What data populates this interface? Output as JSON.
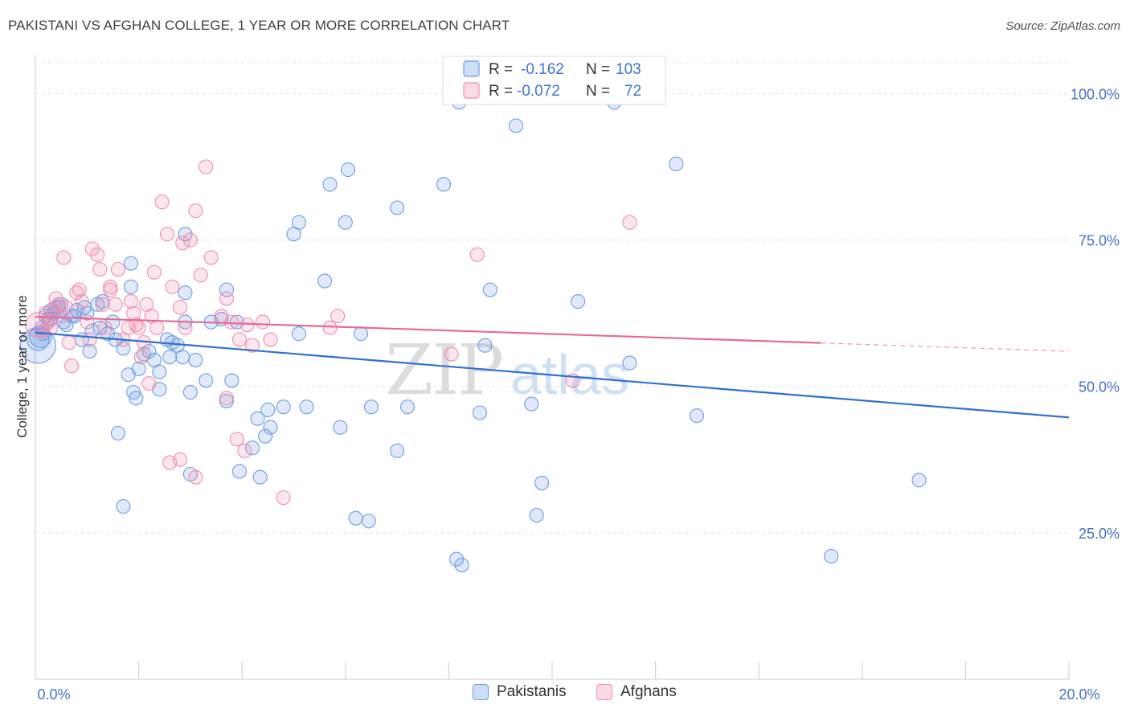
{
  "title": "PAKISTANI VS AFGHAN COLLEGE, 1 YEAR OR MORE CORRELATION CHART",
  "source": "Source: ZipAtlas.com",
  "watermark": {
    "zip": "ZIP",
    "atlas": "atlas"
  },
  "legend_top": [
    {
      "r_label": "R =",
      "r_value": "-0.162",
      "n_label": "N =",
      "n_value": "103",
      "color": "#6d9be3"
    },
    {
      "r_label": "R =",
      "r_value": "-0.072",
      "n_label": "N =",
      "n_value": "72",
      "color": "#f08caf"
    }
  ],
  "legend_bottom": [
    {
      "label": "Pakistanis",
      "color": "#6d9be3"
    },
    {
      "label": "Afghans",
      "color": "#f08caf"
    }
  ],
  "chart_data": {
    "type": "scatter",
    "title": "PAKISTANI VS AFGHAN COLLEGE, 1 YEAR OR MORE CORRELATION CHART",
    "xlabel": "",
    "ylabel": "College, 1 year or more",
    "xlim": [
      0,
      20
    ],
    "ylim": [
      0,
      105
    ],
    "x_ticks": [
      "0.0%",
      "20.0%"
    ],
    "y_ticks": [
      {
        "value": 25,
        "label": "25.0%"
      },
      {
        "value": 50,
        "label": "50.0%"
      },
      {
        "value": 75,
        "label": "75.0%"
      },
      {
        "value": 100,
        "label": "100.0%"
      }
    ],
    "grid": true,
    "legend_position": "top-center",
    "series": [
      {
        "name": "Pakistanis",
        "color": "#6d9be3",
        "line_color": "#2e6fd0",
        "trend": {
          "x": [
            0,
            20
          ],
          "y": [
            59.2,
            44.7
          ],
          "dashed_from": null
        },
        "points": [
          [
            0.05,
            57.0,
            2.6
          ],
          [
            0.1,
            58.5,
            1.6
          ],
          [
            0.12,
            60.0,
            1.0
          ],
          [
            0.2,
            62.0,
            1.0
          ],
          [
            0.25,
            61.5,
            1.0
          ],
          [
            0.3,
            63.0,
            1.0
          ],
          [
            0.35,
            62.5,
            1.0
          ],
          [
            0.4,
            63.5,
            1.0
          ],
          [
            0.5,
            64.0,
            1.0
          ],
          [
            0.55,
            61.0,
            1.0
          ],
          [
            0.6,
            60.5,
            1.0
          ],
          [
            0.7,
            62.0,
            1.0
          ],
          [
            0.8,
            63.0,
            1.0
          ],
          [
            0.9,
            58.0,
            1.0
          ],
          [
            1.0,
            62.5,
            1.0
          ],
          [
            1.05,
            56.0,
            1.0
          ],
          [
            1.1,
            59.5,
            1.0
          ],
          [
            1.2,
            64.0,
            1.0
          ],
          [
            1.3,
            64.5,
            1.0
          ],
          [
            1.4,
            59.0,
            1.0
          ],
          [
            1.5,
            61.0,
            1.0
          ],
          [
            1.55,
            58.0,
            1.0
          ],
          [
            1.7,
            56.5,
            1.0
          ],
          [
            1.8,
            52.0,
            1.0
          ],
          [
            1.9,
            49.0,
            1.0
          ],
          [
            2.0,
            53.0,
            1.0
          ],
          [
            2.1,
            55.5,
            1.0
          ],
          [
            2.2,
            56.0,
            1.0
          ],
          [
            2.3,
            54.5,
            1.0
          ],
          [
            2.4,
            52.5,
            1.0
          ],
          [
            2.55,
            58.0,
            1.0
          ],
          [
            2.6,
            55.0,
            1.0
          ],
          [
            2.75,
            57.0,
            1.0
          ],
          [
            2.85,
            55.0,
            1.0
          ],
          [
            2.9,
            61.0,
            1.0
          ],
          [
            3.0,
            49.0,
            1.0
          ],
          [
            3.1,
            54.5,
            1.0
          ],
          [
            3.3,
            51.0,
            1.0
          ],
          [
            3.4,
            61.0,
            1.0
          ],
          [
            1.85,
            67.0,
            1.0
          ],
          [
            3.7,
            66.5,
            1.0
          ],
          [
            2.9,
            66.0,
            1.0
          ],
          [
            1.85,
            71.0,
            1.0
          ],
          [
            2.9,
            76.0,
            1.0
          ],
          [
            1.95,
            48.0,
            1.0
          ],
          [
            2.4,
            49.5,
            1.0
          ],
          [
            1.6,
            42.0,
            1.0
          ],
          [
            1.7,
            29.5,
            1.0
          ],
          [
            3.0,
            35.0,
            1.0
          ],
          [
            3.7,
            47.5,
            1.0
          ],
          [
            3.8,
            51.0,
            1.0
          ],
          [
            3.95,
            35.5,
            1.0
          ],
          [
            4.2,
            39.5,
            1.0
          ],
          [
            4.3,
            44.5,
            1.0
          ],
          [
            4.35,
            34.5,
            1.0
          ],
          [
            4.45,
            41.5,
            1.0
          ],
          [
            4.5,
            46.0,
            1.0
          ],
          [
            4.55,
            43.0,
            1.0
          ],
          [
            4.8,
            46.5,
            1.0
          ],
          [
            5.1,
            59.0,
            1.0
          ],
          [
            5.25,
            46.5,
            1.0
          ],
          [
            5.9,
            43.0,
            1.0
          ],
          [
            6.2,
            27.5,
            1.0
          ],
          [
            6.45,
            27.0,
            1.0
          ],
          [
            6.5,
            46.5,
            1.0
          ],
          [
            7.0,
            39.0,
            1.0
          ],
          [
            7.2,
            46.5,
            1.0
          ],
          [
            8.15,
            20.5,
            1.0
          ],
          [
            8.25,
            19.5,
            1.0
          ],
          [
            9.7,
            28.0,
            1.0
          ],
          [
            9.8,
            33.5,
            1.0
          ],
          [
            10.5,
            64.5,
            1.0
          ],
          [
            11.5,
            54.0,
            1.0
          ],
          [
            12.8,
            45.0,
            1.0
          ],
          [
            15.4,
            21.0,
            1.0
          ],
          [
            17.1,
            34.0,
            1.0
          ],
          [
            5.0,
            76.0,
            1.0
          ],
          [
            5.1,
            78.0,
            1.0
          ],
          [
            5.6,
            68.0,
            1.0
          ],
          [
            5.7,
            84.5,
            1.0
          ],
          [
            6.0,
            78.0,
            1.0
          ],
          [
            6.05,
            87.0,
            1.0
          ],
          [
            6.3,
            59.0,
            1.0
          ],
          [
            7.0,
            80.5,
            1.0
          ],
          [
            7.9,
            84.5,
            1.0
          ],
          [
            8.7,
            57.0,
            1.0
          ],
          [
            8.8,
            66.5,
            1.0
          ],
          [
            9.3,
            94.5,
            1.0
          ],
          [
            11.2,
            98.5,
            1.0
          ],
          [
            12.4,
            88.0,
            1.0
          ],
          [
            8.2,
            98.5,
            1.0
          ],
          [
            8.6,
            45.5,
            1.0
          ],
          [
            9.6,
            47.0,
            1.0
          ],
          [
            3.9,
            61.0,
            1.0
          ],
          [
            3.6,
            61.5,
            1.0
          ],
          [
            2.65,
            57.5,
            1.0
          ],
          [
            1.25,
            60.0,
            1.0
          ],
          [
            0.95,
            63.5,
            1.0
          ],
          [
            0.75,
            62.0,
            1.0
          ],
          [
            0.45,
            63.5,
            1.0
          ],
          [
            0.3,
            61.5,
            1.0
          ],
          [
            0.15,
            59.0,
            1.0
          ],
          [
            0.05,
            58.0,
            1.6
          ]
        ]
      },
      {
        "name": "Afghans",
        "color": "#f08caf",
        "line_color": "#e26b96",
        "trend": {
          "x": [
            0,
            20
          ],
          "y": [
            61.9,
            56.0
          ],
          "dashed_from": 15.2
        },
        "points": [
          [
            0.05,
            60.5,
            1.8
          ],
          [
            0.15,
            59.5,
            1.0
          ],
          [
            0.25,
            61.0,
            1.0
          ],
          [
            0.35,
            63.0,
            1.0
          ],
          [
            0.45,
            64.0,
            1.0
          ],
          [
            0.5,
            62.0,
            1.0
          ],
          [
            0.6,
            63.5,
            1.0
          ],
          [
            0.65,
            57.5,
            1.0
          ],
          [
            0.7,
            53.5,
            1.0
          ],
          [
            0.8,
            66.0,
            1.0
          ],
          [
            0.9,
            64.5,
            1.0
          ],
          [
            1.0,
            61.0,
            1.0
          ],
          [
            1.05,
            58.0,
            1.0
          ],
          [
            1.1,
            73.5,
            1.0
          ],
          [
            1.2,
            72.5,
            1.0
          ],
          [
            1.3,
            64.0,
            1.0
          ],
          [
            1.35,
            60.0,
            1.0
          ],
          [
            1.45,
            67.0,
            1.0
          ],
          [
            1.55,
            64.0,
            1.0
          ],
          [
            1.6,
            70.0,
            1.0
          ],
          [
            1.7,
            58.0,
            1.0
          ],
          [
            1.8,
            60.0,
            1.0
          ],
          [
            1.9,
            62.5,
            1.0
          ],
          [
            2.0,
            60.0,
            1.0
          ],
          [
            2.1,
            57.5,
            1.0
          ],
          [
            2.15,
            64.0,
            1.0
          ],
          [
            2.25,
            62.0,
            1.0
          ],
          [
            2.35,
            60.0,
            1.0
          ],
          [
            2.45,
            81.5,
            1.0
          ],
          [
            2.55,
            76.0,
            1.0
          ],
          [
            2.65,
            67.0,
            1.0
          ],
          [
            2.8,
            63.5,
            1.0
          ],
          [
            2.9,
            60.0,
            1.0
          ],
          [
            3.0,
            75.0,
            1.0
          ],
          [
            3.1,
            80.0,
            1.0
          ],
          [
            3.3,
            87.5,
            1.0
          ],
          [
            3.4,
            72.0,
            1.0
          ],
          [
            3.6,
            62.0,
            1.0
          ],
          [
            3.7,
            65.0,
            1.0
          ],
          [
            3.8,
            61.0,
            1.0
          ],
          [
            3.95,
            58.0,
            1.0
          ],
          [
            4.1,
            60.5,
            1.0
          ],
          [
            4.2,
            57.0,
            1.0
          ],
          [
            4.4,
            61.0,
            1.0
          ],
          [
            4.55,
            58.0,
            1.0
          ],
          [
            3.9,
            41.0,
            1.0
          ],
          [
            4.05,
            39.0,
            1.0
          ],
          [
            3.7,
            48.0,
            1.0
          ],
          [
            2.6,
            37.0,
            1.0
          ],
          [
            2.8,
            37.5,
            1.0
          ],
          [
            3.1,
            34.5,
            1.0
          ],
          [
            4.8,
            31.0,
            1.0
          ],
          [
            5.85,
            62.0,
            1.0
          ],
          [
            5.7,
            60.0,
            1.0
          ],
          [
            8.05,
            55.5,
            1.0
          ],
          [
            8.55,
            72.5,
            1.0
          ],
          [
            10.4,
            51.0,
            1.0
          ],
          [
            11.5,
            78.0,
            1.0
          ],
          [
            0.55,
            72.0,
            1.0
          ],
          [
            1.25,
            70.0,
            1.0
          ],
          [
            1.45,
            66.5,
            1.0
          ],
          [
            1.85,
            64.5,
            1.0
          ],
          [
            2.2,
            50.5,
            1.0
          ],
          [
            1.95,
            60.5,
            1.0
          ],
          [
            2.05,
            55.0,
            1.0
          ],
          [
            0.85,
            66.5,
            1.0
          ],
          [
            0.4,
            65.0,
            1.0
          ],
          [
            0.2,
            62.5,
            1.0
          ],
          [
            0.3,
            60.0,
            1.0
          ],
          [
            3.2,
            69.0,
            1.0
          ],
          [
            2.85,
            74.5,
            1.0
          ],
          [
            2.3,
            69.5,
            1.0
          ]
        ]
      }
    ]
  }
}
